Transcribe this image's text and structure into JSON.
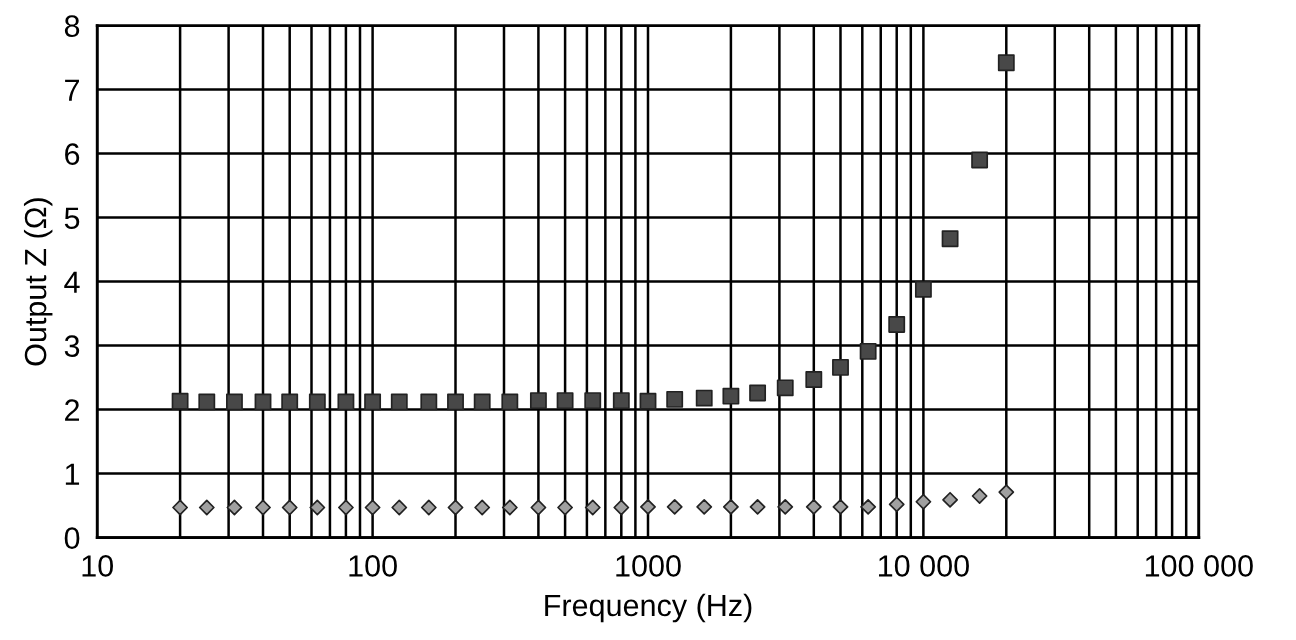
{
  "chart_data": {
    "type": "scatter",
    "xlabel": "Frequency (Hz)",
    "ylabel": "Output Z (Ω)",
    "x": [
      20,
      25,
      31.5,
      40,
      50,
      63,
      80,
      100,
      125,
      160,
      200,
      250,
      315,
      400,
      500,
      630,
      800,
      1000,
      1250,
      1600,
      2000,
      2500,
      3150,
      4000,
      5000,
      6300,
      8000,
      10000,
      12500,
      16000,
      20000
    ],
    "series": [
      {
        "color": "#484848",
        "marker": "square",
        "values": [
          2.13,
          2.12,
          2.12,
          2.12,
          2.12,
          2.12,
          2.12,
          2.12,
          2.12,
          2.12,
          2.12,
          2.12,
          2.12,
          2.14,
          2.14,
          2.14,
          2.14,
          2.13,
          2.16,
          2.18,
          2.21,
          2.26,
          2.34,
          2.47,
          2.66,
          2.91,
          3.33,
          3.88,
          4.67,
          5.9,
          7.42
        ]
      },
      {
        "color": "#a0a0a0",
        "marker": "diamond",
        "values": [
          0.47,
          0.47,
          0.47,
          0.47,
          0.47,
          0.47,
          0.47,
          0.47,
          0.47,
          0.47,
          0.47,
          0.47,
          0.47,
          0.47,
          0.47,
          0.47,
          0.47,
          0.48,
          0.48,
          0.48,
          0.48,
          0.48,
          0.48,
          0.48,
          0.48,
          0.48,
          0.52,
          0.56,
          0.59,
          0.65,
          0.71
        ]
      }
    ],
    "log": "x",
    "xlim": [
      10,
      100000
    ],
    "xticks": [
      10,
      100,
      1000,
      {
        "value": 10000,
        "label": "10 000"
      },
      {
        "value": 100000,
        "label": "100 000"
      }
    ],
    "ylim": [
      0,
      8
    ],
    "yticks": [
      0,
      1,
      2,
      3,
      4,
      5,
      6,
      7,
      8
    ],
    "grid": true
  }
}
